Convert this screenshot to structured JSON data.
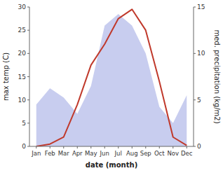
{
  "chart_data": {
    "type": "line",
    "xlabel": "date (month)",
    "ylabel": "max temp (C)",
    "y2label": "med. precipitation (kg/m2)",
    "categories": [
      "Jan",
      "Feb",
      "Mar",
      "Apr",
      "May",
      "Jun",
      "Jul",
      "Aug",
      "Sep",
      "Oct",
      "Nov",
      "Dec"
    ],
    "series": [
      {
        "type": "area",
        "color": "#b0b8e8",
        "values": [
          9.0,
          12.5,
          10.5,
          7.0,
          13.0,
          26.0,
          28.5,
          26.0,
          20.0,
          8.5,
          5.0,
          11.0
        ]
      },
      {
        "type": "line",
        "color": "#c0392b",
        "values": [
          0.0,
          0.5,
          2.0,
          9.0,
          17.5,
          22.0,
          27.5,
          29.5,
          25.0,
          14.0,
          2.0,
          0.2
        ]
      }
    ],
    "ylim": [
      0,
      30
    ],
    "yticks": [
      0,
      5,
      10,
      15,
      20,
      25,
      30
    ],
    "y2lim": [
      0,
      15
    ],
    "y2ticks": [
      0,
      5,
      10,
      15
    ],
    "grid": false
  }
}
